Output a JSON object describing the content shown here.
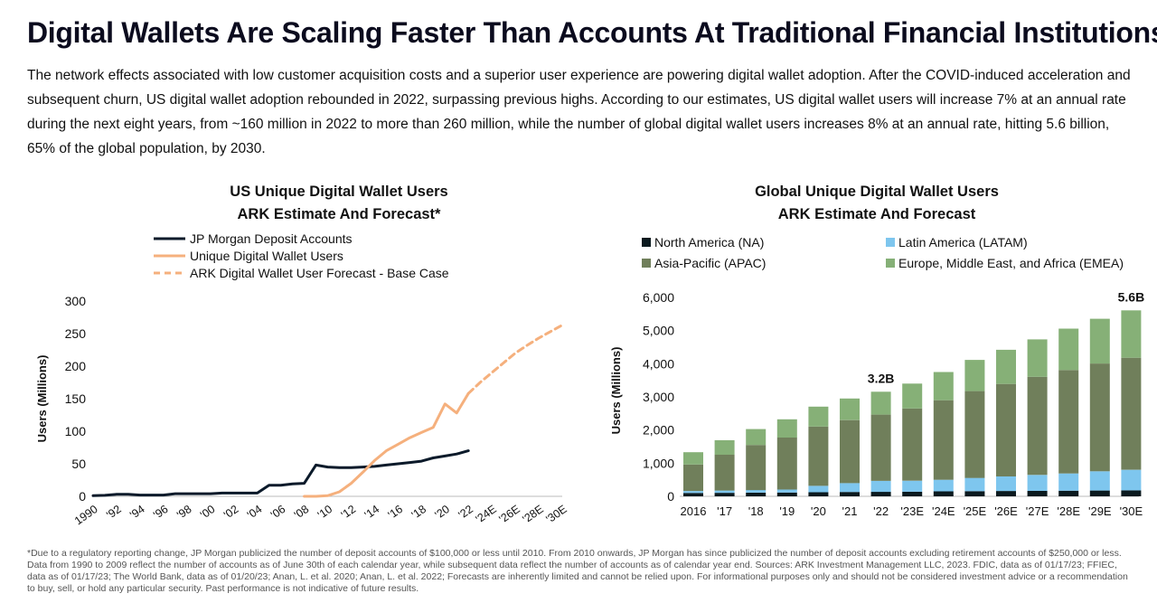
{
  "page": {
    "title": "Digital Wallets Are Scaling Faster Than Accounts At Traditional Financial Institutions",
    "intro": "The network effects associated with low customer acquisition costs and a superior user experience are powering digital wallet adoption. After the COVID-induced acceleration and subsequent churn, US digital wallet adoption rebounded in 2022, surpassing previous highs. According to our estimates, US digital wallet users will increase 7% at an annual rate during the next eight years, from ~160 million in 2022 to more than 260 million, while the number of global digital wallet users increases 8% at an annual rate, hitting 5.6 billion, 65% of the global population, by 2030.",
    "footnote": "*Due to a regulatory reporting change, JP Morgan publicized the number of deposit accounts of $100,000 or less until 2010. From 2010 onwards, JP Morgan has since publicized the number of deposit accounts excluding retirement accounts of $250,000 or less. Data from 1990 to 2009 reflect the number of accounts as of June 30th of each calendar year, while subsequent data reflect the number of accounts as of calendar year end. Sources: ARK Investment Management LLC, 2023. FDIC, data as of 01/17/23; FFIEC, data as of 01/17/23; The World Bank, data as of 01/20/23; Anan, L. et al. 2020; Anan, L. et al. 2022; Forecasts are inherently limited and cannot be relied upon. For informational purposes only and should not be considered investment advice or a recommendation to buy, sell, or hold any particular security. Past performance is not indicative of future results."
  },
  "chart_data": [
    {
      "type": "line",
      "title": "US Unique Digital Wallet Users",
      "subtitle": "ARK Estimate And Forecast*",
      "ylabel": "Users (Millions)",
      "xlabel": "",
      "ylim": [
        0,
        300
      ],
      "yticks": [
        "0",
        "50",
        "100",
        "150",
        "200",
        "250",
        "300"
      ],
      "x": [
        1990,
        1991,
        1992,
        1993,
        1994,
        1995,
        1996,
        1997,
        1998,
        1999,
        2000,
        2001,
        2002,
        2003,
        2004,
        2005,
        2006,
        2007,
        2008,
        2009,
        2010,
        2011,
        2012,
        2013,
        2014,
        2015,
        2016,
        2017,
        2018,
        2019,
        2020,
        2021,
        2022,
        2023,
        2024,
        2025,
        2026,
        2027,
        2028,
        2029,
        2030
      ],
      "xticklabels": [
        "1990",
        "'92",
        "'94",
        "'96",
        "'98",
        "'00",
        "'02",
        "'04",
        "'06",
        "'08",
        "'10",
        "'12",
        "'14",
        "'16",
        "'18",
        "'20",
        "'22",
        "'24E",
        "'26E",
        "'28E",
        "'30E"
      ],
      "grid": false,
      "legend": "top",
      "colors": {
        "jpm": "#0b1a2a",
        "wallet": "#f5b07d"
      },
      "series": [
        {
          "name": "JP Morgan Deposit Accounts",
          "x": [
            1990,
            1991,
            1992,
            1993,
            1994,
            1995,
            1996,
            1997,
            1998,
            1999,
            2000,
            2001,
            2002,
            2003,
            2004,
            2005,
            2006,
            2007,
            2008,
            2009,
            2010,
            2011,
            2012,
            2013,
            2014,
            2015,
            2016,
            2017,
            2018,
            2019,
            2020,
            2021,
            2022
          ],
          "values": [
            1,
            1.5,
            3,
            3,
            2,
            2,
            2,
            4,
            4,
            4,
            4,
            5,
            5,
            5,
            5,
            17,
            17,
            19,
            20,
            48,
            45,
            44,
            44,
            45,
            46,
            48,
            50,
            52,
            54,
            59,
            62,
            65,
            70
          ]
        },
        {
          "name": "Unique Digital Wallet Users",
          "x": [
            2008,
            2009,
            2010,
            2011,
            2012,
            2013,
            2014,
            2015,
            2016,
            2017,
            2018,
            2019,
            2020,
            2021,
            2022
          ],
          "values": [
            0,
            0,
            1,
            7,
            20,
            37,
            55,
            70,
            80,
            90,
            98,
            106,
            142,
            128,
            158
          ]
        },
        {
          "name": "ARK Digital Wallet User Forecast - Base Case",
          "x": [
            2022,
            2023,
            2024,
            2025,
            2026,
            2027,
            2028,
            2029,
            2030
          ],
          "values": [
            158,
            175,
            190,
            205,
            220,
            232,
            243,
            253,
            263
          ]
        }
      ]
    },
    {
      "type": "bar",
      "stacked": true,
      "title": "Global Unique Digital Wallet Users",
      "subtitle": "ARK Estimate And Forecast",
      "ylabel": "Users (Millions)",
      "xlabel": "",
      "ylim": [
        0,
        6000
      ],
      "yticks": [
        "0",
        "1,000",
        "2,000",
        "3,000",
        "4,000",
        "5,000",
        "6,000"
      ],
      "categories": [
        "2016",
        "'17",
        "'18",
        "'19",
        "'20",
        "'21",
        "'22",
        "'23E",
        "'24E",
        "'25E",
        "'26E",
        "'27E",
        "'28E",
        "'29E",
        "'30E"
      ],
      "legend": "top",
      "grid": false,
      "annotations": [
        {
          "category": "'22",
          "text": "3.2B"
        },
        {
          "category": "'30E",
          "text": "5.6B"
        }
      ],
      "series": [
        {
          "name": "North America (NA)",
          "color": "#0b1a1f",
          "values": [
            100,
            105,
            110,
            115,
            125,
            130,
            135,
            140,
            150,
            155,
            160,
            165,
            170,
            175,
            180
          ]
        },
        {
          "name": "Latin America (LATAM)",
          "color": "#7ec6ee",
          "values": [
            60,
            70,
            80,
            90,
            190,
            270,
            330,
            330,
            350,
            400,
            440,
            480,
            520,
            580,
            620
          ]
        },
        {
          "name": "Asia-Pacific (APAC)",
          "color": "#707f5b",
          "values": [
            800,
            1080,
            1360,
            1570,
            1790,
            1900,
            2000,
            2180,
            2400,
            2620,
            2790,
            2960,
            3120,
            3250,
            3380
          ]
        },
        {
          "name": "Europe, Middle East, and Africa (EMEA)",
          "color": "#86b077",
          "values": [
            370,
            440,
            480,
            550,
            600,
            650,
            690,
            750,
            850,
            940,
            1030,
            1130,
            1250,
            1350,
            1430
          ]
        }
      ]
    }
  ]
}
